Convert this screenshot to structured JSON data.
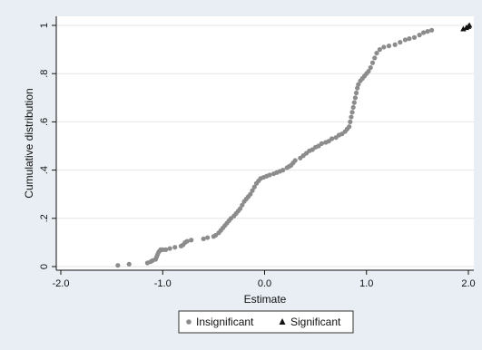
{
  "chart_data": {
    "type": "scatter",
    "title": "",
    "xlabel": "Estimate",
    "ylabel": "Cumulative distribution",
    "xlim": [
      -2.0,
      2.0
    ],
    "ylim": [
      0,
      1
    ],
    "x_ticks": [
      -2.0,
      -1.0,
      0.0,
      1.0,
      2.0
    ],
    "x_tick_labels": [
      "-2.0",
      "-1.0",
      "0.0",
      "1.0",
      "2.0"
    ],
    "y_ticks": [
      0,
      0.2,
      0.4,
      0.6,
      0.8,
      1
    ],
    "y_tick_labels": [
      "0",
      ".2",
      ".4",
      ".6",
      ".8",
      "1"
    ],
    "grid": "horizontal",
    "legend_position": "bottom",
    "series": [
      {
        "name": "Insignificant",
        "marker": "circle",
        "color": "#8c8c8c",
        "points": [
          [
            -1.44,
            0.005
          ],
          [
            -1.33,
            0.01
          ],
          [
            -1.15,
            0.015
          ],
          [
            -1.12,
            0.02
          ],
          [
            -1.1,
            0.025
          ],
          [
            -1.07,
            0.03
          ],
          [
            -1.06,
            0.04
          ],
          [
            -1.05,
            0.05
          ],
          [
            -1.04,
            0.06
          ],
          [
            -1.03,
            0.065
          ],
          [
            -1.02,
            0.07
          ],
          [
            -1.0,
            0.07
          ],
          [
            -0.97,
            0.07
          ],
          [
            -0.93,
            0.075
          ],
          [
            -0.88,
            0.08
          ],
          [
            -0.82,
            0.085
          ],
          [
            -0.8,
            0.09
          ],
          [
            -0.78,
            0.1
          ],
          [
            -0.76,
            0.105
          ],
          [
            -0.72,
            0.11
          ],
          [
            -0.6,
            0.115
          ],
          [
            -0.56,
            0.12
          ],
          [
            -0.5,
            0.125
          ],
          [
            -0.48,
            0.13
          ],
          [
            -0.45,
            0.14
          ],
          [
            -0.43,
            0.15
          ],
          [
            -0.41,
            0.16
          ],
          [
            -0.39,
            0.17
          ],
          [
            -0.37,
            0.18
          ],
          [
            -0.35,
            0.19
          ],
          [
            -0.33,
            0.2
          ],
          [
            -0.3,
            0.21
          ],
          [
            -0.28,
            0.22
          ],
          [
            -0.26,
            0.23
          ],
          [
            -0.24,
            0.24
          ],
          [
            -0.22,
            0.255
          ],
          [
            -0.2,
            0.27
          ],
          [
            -0.18,
            0.28
          ],
          [
            -0.16,
            0.29
          ],
          [
            -0.14,
            0.3
          ],
          [
            -0.12,
            0.315
          ],
          [
            -0.1,
            0.33
          ],
          [
            -0.08,
            0.345
          ],
          [
            -0.06,
            0.355
          ],
          [
            -0.04,
            0.365
          ],
          [
            -0.01,
            0.37
          ],
          [
            0.02,
            0.375
          ],
          [
            0.05,
            0.38
          ],
          [
            0.09,
            0.385
          ],
          [
            0.12,
            0.39
          ],
          [
            0.15,
            0.395
          ],
          [
            0.18,
            0.4
          ],
          [
            0.22,
            0.41
          ],
          [
            0.24,
            0.415
          ],
          [
            0.26,
            0.42
          ],
          [
            0.28,
            0.43
          ],
          [
            0.3,
            0.44
          ],
          [
            0.35,
            0.45
          ],
          [
            0.38,
            0.46
          ],
          [
            0.41,
            0.47
          ],
          [
            0.44,
            0.48
          ],
          [
            0.47,
            0.485
          ],
          [
            0.5,
            0.495
          ],
          [
            0.53,
            0.5
          ],
          [
            0.56,
            0.51
          ],
          [
            0.6,
            0.515
          ],
          [
            0.63,
            0.52
          ],
          [
            0.66,
            0.53
          ],
          [
            0.7,
            0.535
          ],
          [
            0.73,
            0.545
          ],
          [
            0.76,
            0.55
          ],
          [
            0.79,
            0.56
          ],
          [
            0.81,
            0.57
          ],
          [
            0.83,
            0.58
          ],
          [
            0.84,
            0.6
          ],
          [
            0.85,
            0.62
          ],
          [
            0.86,
            0.64
          ],
          [
            0.87,
            0.66
          ],
          [
            0.88,
            0.68
          ],
          [
            0.89,
            0.7
          ],
          [
            0.9,
            0.72
          ],
          [
            0.91,
            0.74
          ],
          [
            0.92,
            0.755
          ],
          [
            0.94,
            0.77
          ],
          [
            0.96,
            0.78
          ],
          [
            0.98,
            0.79
          ],
          [
            1.0,
            0.8
          ],
          [
            1.02,
            0.81
          ],
          [
            1.04,
            0.825
          ],
          [
            1.06,
            0.845
          ],
          [
            1.08,
            0.865
          ],
          [
            1.1,
            0.885
          ],
          [
            1.13,
            0.9
          ],
          [
            1.17,
            0.91
          ],
          [
            1.22,
            0.915
          ],
          [
            1.28,
            0.92
          ],
          [
            1.33,
            0.93
          ],
          [
            1.38,
            0.94
          ],
          [
            1.42,
            0.945
          ],
          [
            1.47,
            0.95
          ],
          [
            1.52,
            0.96
          ],
          [
            1.56,
            0.97
          ],
          [
            1.6,
            0.975
          ],
          [
            1.64,
            0.98
          ]
        ]
      },
      {
        "name": "Significant",
        "marker": "triangle",
        "color": "#111111",
        "points": [
          [
            1.95,
            0.985
          ],
          [
            1.98,
            0.99
          ],
          [
            2.0,
            0.995
          ],
          [
            2.01,
            1.0
          ]
        ]
      }
    ]
  }
}
